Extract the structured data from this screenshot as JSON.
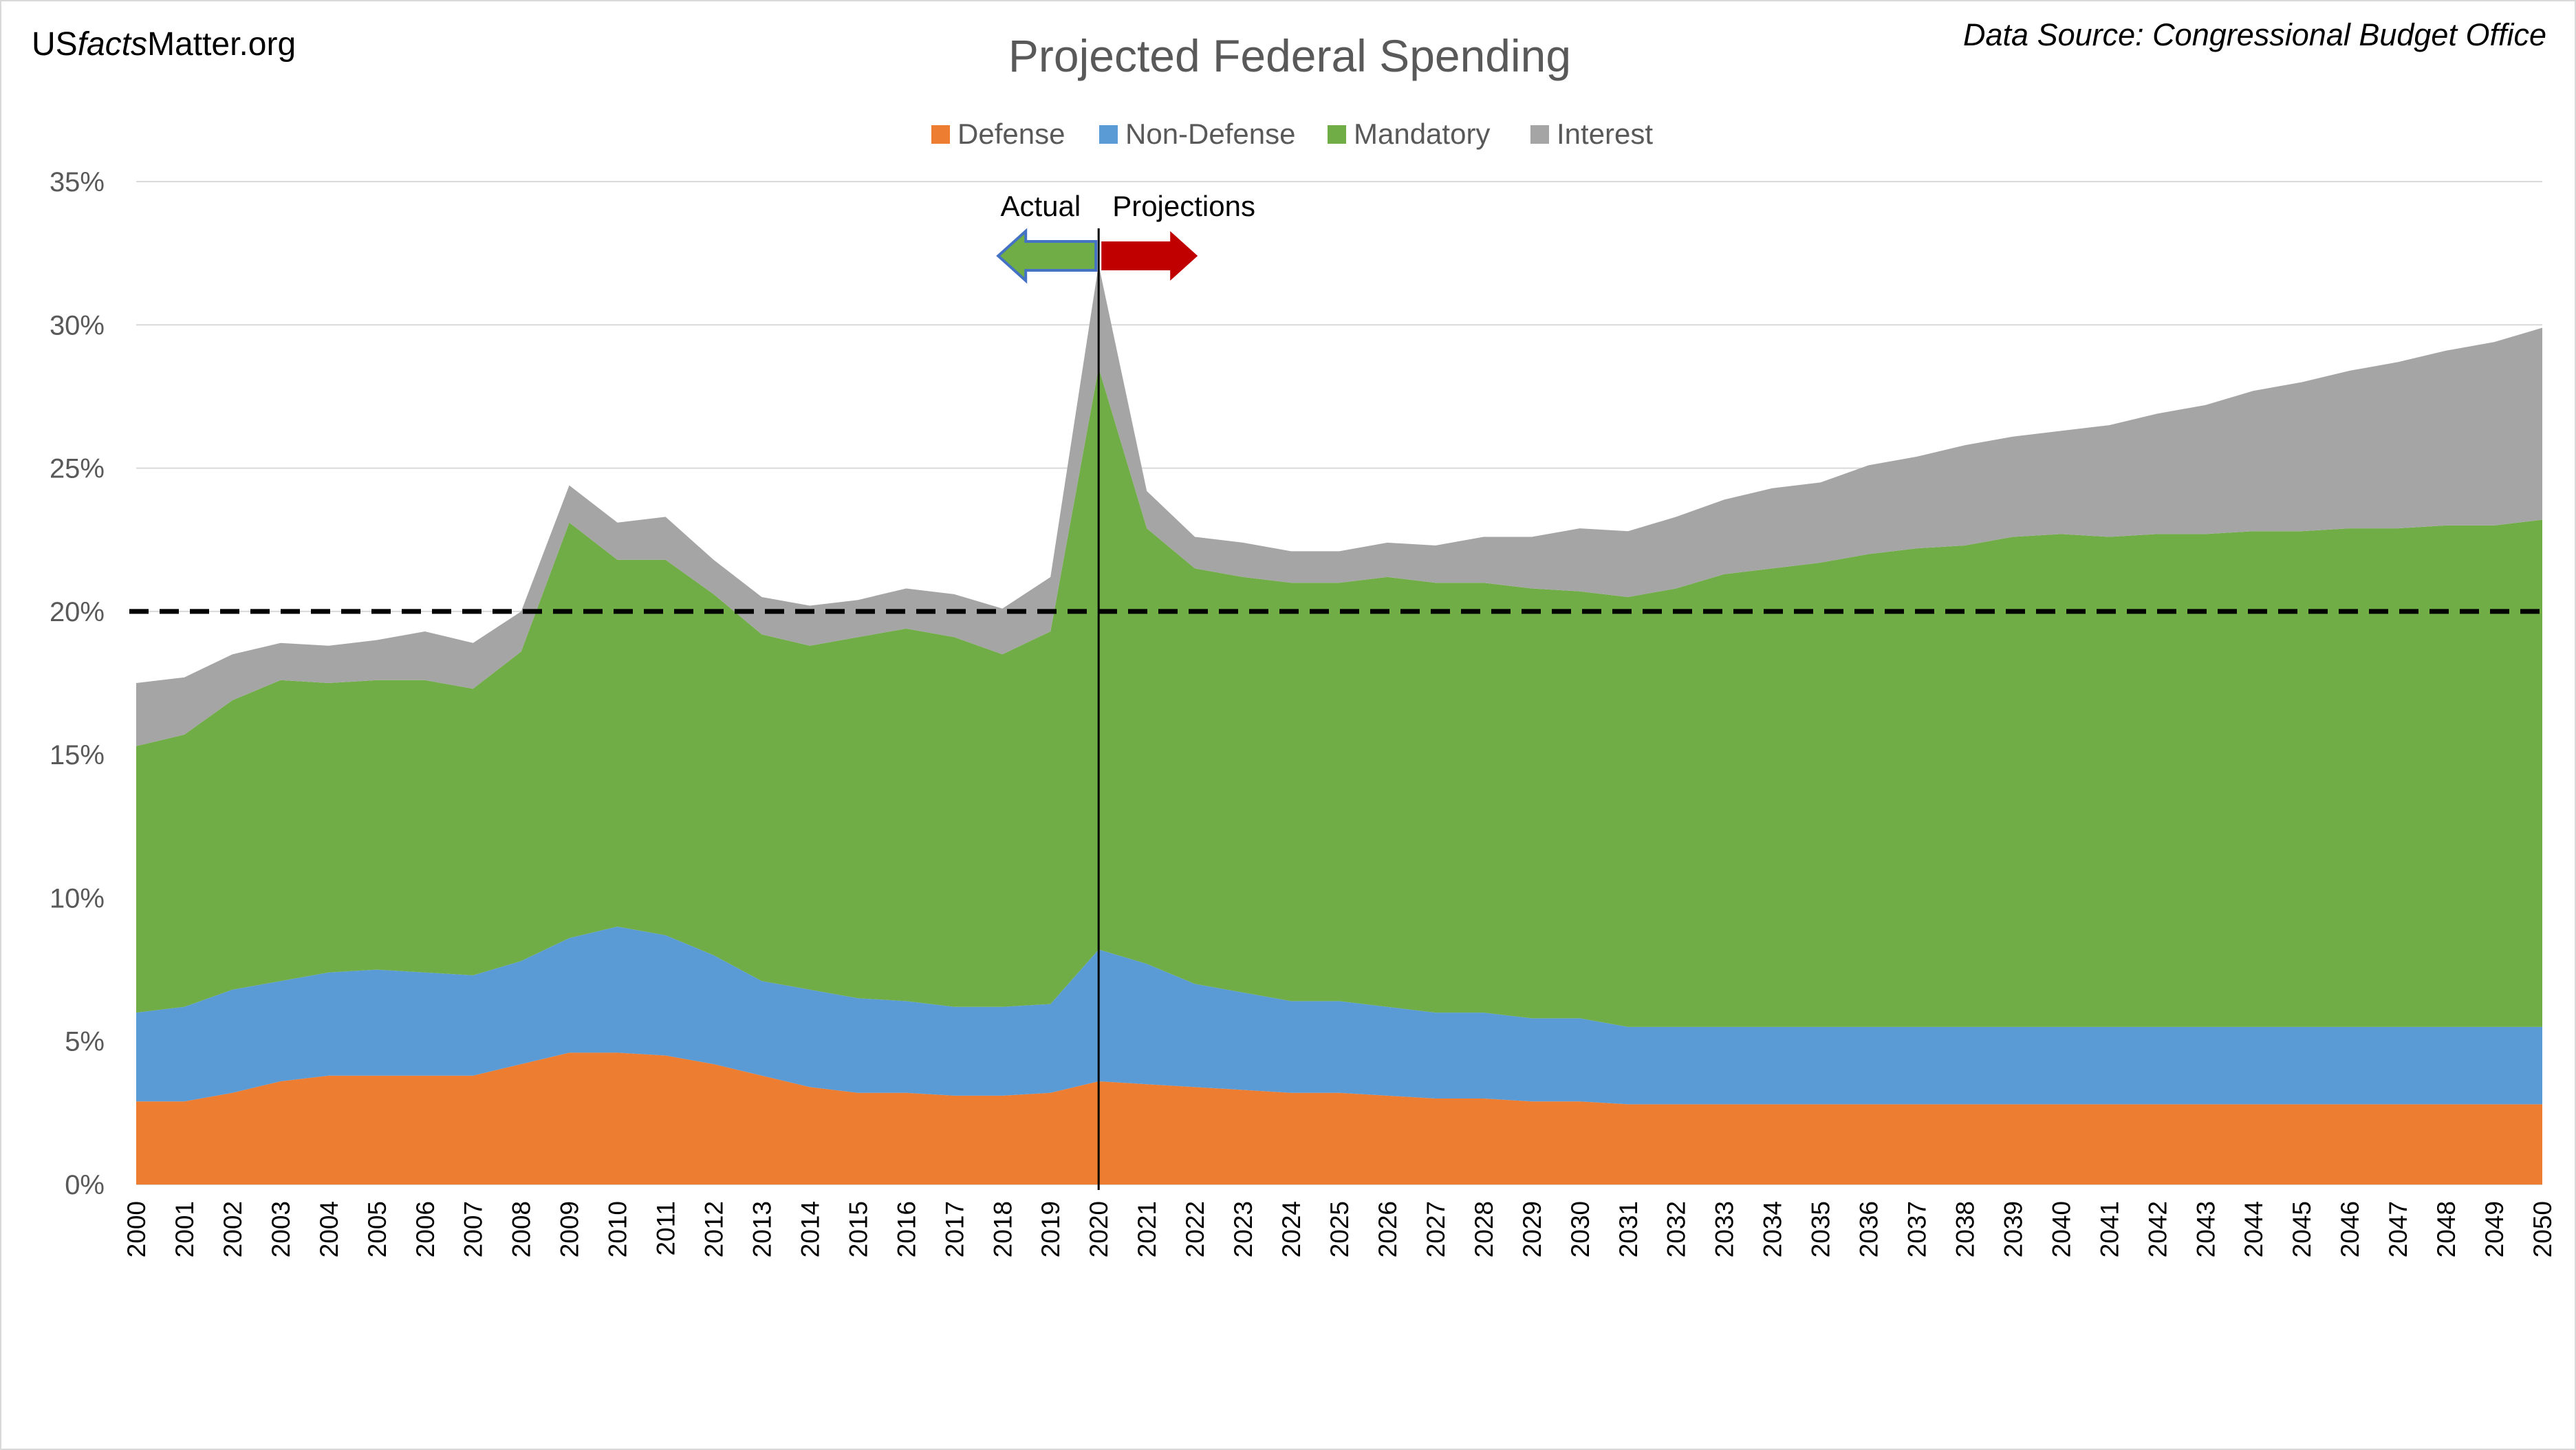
{
  "branding": {
    "prefix": "US",
    "italic": "facts",
    "suffix": "Matter.org"
  },
  "source_note": "Data Source: Congressional Budget Office",
  "chart_data": {
    "type": "area",
    "stacked": true,
    "title": "Projected Federal Spending",
    "xlabel": "",
    "ylabel": "",
    "ylim": [
      0,
      35
    ],
    "y_ticks": [
      {
        "value": 0,
        "label": "0%"
      },
      {
        "value": 5,
        "label": "5%"
      },
      {
        "value": 10,
        "label": "10%"
      },
      {
        "value": 15,
        "label": "15%"
      },
      {
        "value": 20,
        "label": "20%"
      },
      {
        "value": 25,
        "label": "25%"
      },
      {
        "value": 30,
        "label": "30%"
      },
      {
        "value": 35,
        "label": "35%"
      }
    ],
    "x": [
      "2000",
      "2001",
      "2002",
      "2003",
      "2004",
      "2005",
      "2006",
      "2007",
      "2008",
      "2009",
      "2010",
      "2011",
      "2012",
      "2013",
      "2014",
      "2015",
      "2016",
      "2017",
      "2018",
      "2019",
      "2020",
      "2021",
      "2022",
      "2023",
      "2024",
      "2025",
      "2026",
      "2027",
      "2028",
      "2029",
      "2030",
      "2031",
      "2032",
      "2033",
      "2034",
      "2035",
      "2036",
      "2037",
      "2038",
      "2039",
      "2040",
      "2041",
      "2042",
      "2043",
      "2044",
      "2045",
      "2046",
      "2047",
      "2048",
      "2049",
      "2050"
    ],
    "series": [
      {
        "name": "Defense",
        "color": "#ed7d31",
        "values": [
          2.9,
          2.9,
          3.2,
          3.6,
          3.8,
          3.8,
          3.8,
          3.8,
          4.2,
          4.6,
          4.6,
          4.5,
          4.2,
          3.8,
          3.4,
          3.2,
          3.2,
          3.1,
          3.1,
          3.2,
          3.6,
          3.5,
          3.4,
          3.3,
          3.2,
          3.2,
          3.1,
          3.0,
          3.0,
          2.9,
          2.9,
          2.8,
          2.8,
          2.8,
          2.8,
          2.8,
          2.8,
          2.8,
          2.8,
          2.8,
          2.8,
          2.8,
          2.8,
          2.8,
          2.8,
          2.8,
          2.8,
          2.8,
          2.8,
          2.8,
          2.8
        ]
      },
      {
        "name": "Non-Defense",
        "color": "#5b9bd5",
        "values": [
          3.1,
          3.3,
          3.6,
          3.5,
          3.6,
          3.7,
          3.6,
          3.5,
          3.6,
          4.0,
          4.4,
          4.2,
          3.8,
          3.3,
          3.4,
          3.3,
          3.2,
          3.1,
          3.1,
          3.1,
          4.6,
          4.2,
          3.6,
          3.4,
          3.2,
          3.2,
          3.1,
          3.0,
          3.0,
          2.9,
          2.9,
          2.7,
          2.7,
          2.7,
          2.7,
          2.7,
          2.7,
          2.7,
          2.7,
          2.7,
          2.7,
          2.7,
          2.7,
          2.7,
          2.7,
          2.7,
          2.7,
          2.7,
          2.7,
          2.7,
          2.7
        ]
      },
      {
        "name": "Mandatory",
        "color": "#70ad47",
        "values": [
          9.3,
          9.5,
          10.1,
          10.5,
          10.1,
          10.1,
          10.2,
          10.0,
          10.8,
          14.5,
          12.8,
          13.1,
          12.6,
          12.1,
          12.0,
          12.6,
          13.0,
          12.9,
          12.3,
          13.0,
          20.3,
          15.2,
          14.5,
          14.5,
          14.6,
          14.6,
          15.0,
          15.0,
          15.0,
          15.0,
          14.9,
          15.0,
          15.3,
          15.8,
          16.0,
          16.2,
          16.5,
          16.7,
          16.8,
          17.1,
          17.2,
          17.1,
          17.2,
          17.2,
          17.3,
          17.3,
          17.4,
          17.4,
          17.5,
          17.5,
          17.7
        ]
      },
      {
        "name": "Interest",
        "color": "#a5a5a5",
        "values": [
          2.2,
          2.0,
          1.6,
          1.3,
          1.3,
          1.4,
          1.7,
          1.6,
          1.4,
          1.3,
          1.3,
          1.5,
          1.2,
          1.3,
          1.4,
          1.3,
          1.4,
          1.5,
          1.6,
          1.9,
          3.6,
          1.3,
          1.1,
          1.2,
          1.1,
          1.1,
          1.2,
          1.3,
          1.6,
          1.8,
          2.2,
          2.3,
          2.5,
          2.6,
          2.8,
          2.8,
          3.1,
          3.2,
          3.5,
          3.5,
          3.6,
          3.9,
          4.2,
          4.5,
          4.9,
          5.2,
          5.5,
          5.8,
          6.1,
          6.4,
          6.7
        ]
      }
    ],
    "reference_line": {
      "value": 20,
      "style": "dashed",
      "color": "#000000"
    },
    "divider": {
      "at": "2020",
      "left_label": "Actual",
      "right_label": "Projections",
      "left_color": "#70ad47",
      "right_color": "#c00000"
    },
    "legend": "top-center",
    "grid": true
  }
}
